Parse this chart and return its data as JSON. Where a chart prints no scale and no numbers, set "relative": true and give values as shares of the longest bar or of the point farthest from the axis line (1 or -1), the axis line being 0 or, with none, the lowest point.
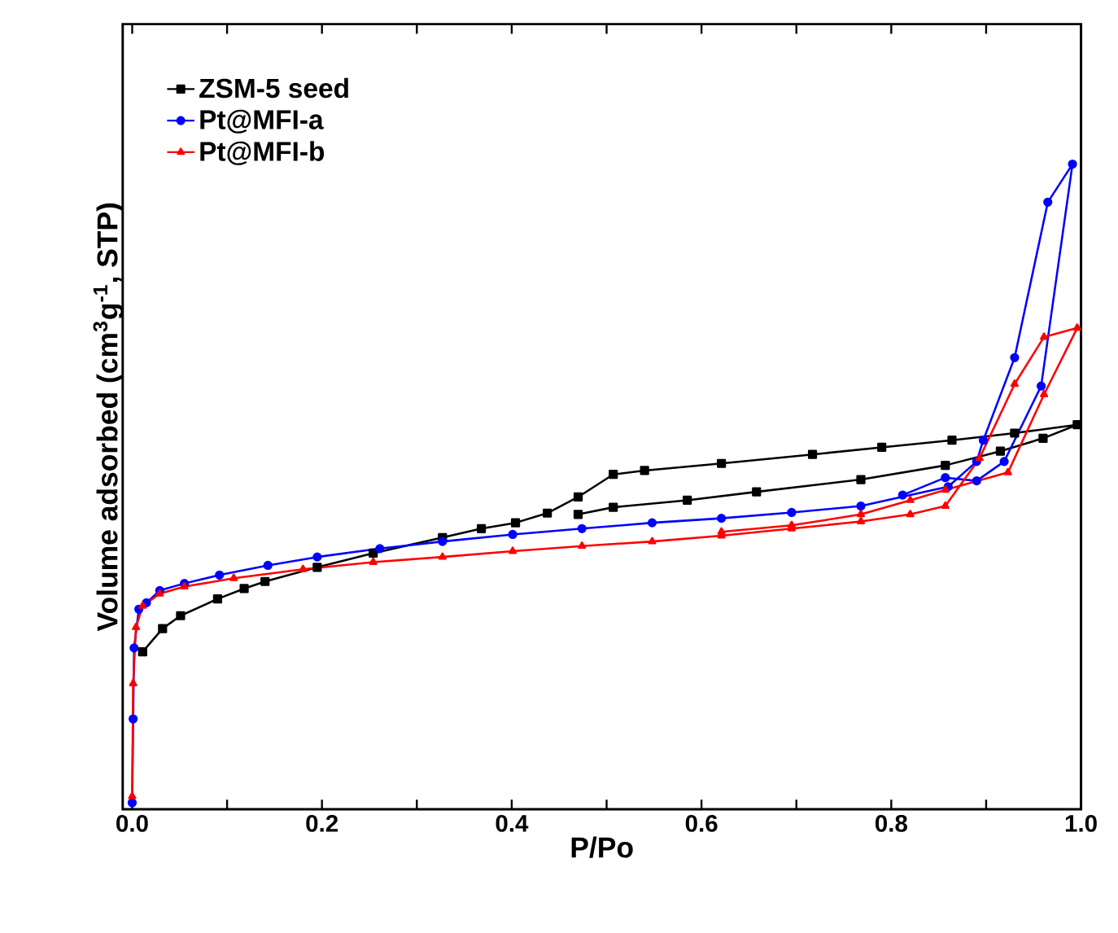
{
  "chart_data": {
    "type": "line",
    "xlabel": "P/Po",
    "ylabel": "Volume adsorbed (cm$^{3}$g$^{-1}$, STP)",
    "relative": true,
    "legend": "top left",
    "line_style": "solid",
    "grid": false,
    "xlim": [
      -0.01,
      1.0
    ],
    "xticks": [
      {
        "value": 0,
        "label": "0.0"
      },
      {
        "value": 0.1,
        "label": null
      },
      0.2,
      {
        "value": 0.3,
        "label": null
      },
      0.4,
      {
        "value": 0.5,
        "label": null
      },
      0.6,
      {
        "value": 0.7,
        "label": null
      },
      0.8,
      {
        "value": 0.9,
        "label": null
      },
      {
        "value": 1.0,
        "label": "1.0"
      }
    ],
    "series": [
      {
        "name": "ZSM-5 seed",
        "color": "#000000",
        "marker": "square",
        "x": [
          0.011,
          0.032,
          0.051,
          0.09,
          0.118,
          0.14,
          0.195,
          0.254,
          0.327,
          0.368,
          0.404,
          0.4375,
          0.47,
          0.507,
          0.54,
          0.621,
          0.717,
          0.79,
          0.864,
          0.93,
          0.996,
          0.96,
          0.915,
          0.857,
          0.768,
          0.658,
          0.585,
          0.507,
          0.47
        ],
        "values": [
          0.244,
          0.28,
          0.3,
          0.326,
          0.342,
          0.353,
          0.375,
          0.397,
          0.421,
          0.435,
          0.444,
          0.459,
          0.484,
          0.519,
          0.525,
          0.536,
          0.55,
          0.561,
          0.572,
          0.583,
          0.596,
          0.575,
          0.555,
          0.533,
          0.511,
          0.492,
          0.479,
          0.468,
          0.457
        ]
      },
      {
        "name": "Pt@MFI-a",
        "color": "#0000ff",
        "marker": "circle",
        "x": [
          0,
          0.001,
          0.002,
          0.007,
          0.015,
          0.029,
          0.055,
          0.092,
          0.143,
          0.195,
          0.261,
          0.327,
          0.401,
          0.474,
          0.548,
          0.621,
          0.695,
          0.768,
          0.86,
          0.89,
          0.897,
          0.93,
          0.965,
          0.991,
          0.958,
          0.919,
          0.89,
          0.857,
          0.812
        ],
        "values": [
          0.01,
          0.14,
          0.25,
          0.31,
          0.32,
          0.339,
          0.35,
          0.363,
          0.378,
          0.391,
          0.404,
          0.415,
          0.426,
          0.435,
          0.444,
          0.451,
          0.46,
          0.47,
          0.5,
          0.539,
          0.572,
          0.7,
          0.941,
          1.0,
          0.656,
          0.539,
          0.509,
          0.514,
          0.487
        ]
      },
      {
        "name": "Pt@MFI-b",
        "color": "#ff0000",
        "marker": "triangle",
        "x": [
          0,
          0.001,
          0.004,
          0.011,
          0.029,
          0.055,
          0.107,
          0.18,
          0.254,
          0.327,
          0.401,
          0.474,
          0.548,
          0.621,
          0.695,
          0.768,
          0.82,
          0.857,
          0.893,
          0.93,
          0.961,
          0.996,
          0.961,
          0.923,
          0.857,
          0.82,
          0.768,
          0.695,
          0.621
        ],
        "values": [
          0.02,
          0.195,
          0.282,
          0.315,
          0.334,
          0.345,
          0.358,
          0.372,
          0.383,
          0.391,
          0.4,
          0.408,
          0.415,
          0.424,
          0.435,
          0.446,
          0.457,
          0.47,
          0.544,
          0.659,
          0.732,
          0.746,
          0.643,
          0.522,
          0.495,
          0.479,
          0.457,
          0.44,
          0.43
        ]
      }
    ]
  }
}
